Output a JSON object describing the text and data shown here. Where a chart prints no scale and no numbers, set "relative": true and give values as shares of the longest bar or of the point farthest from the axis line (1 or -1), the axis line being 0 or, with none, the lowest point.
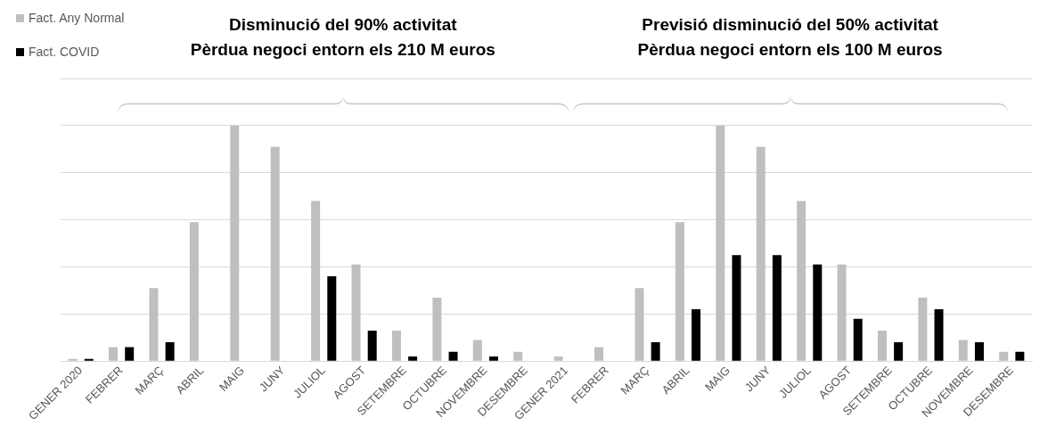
{
  "chart_data": {
    "type": "bar",
    "relative": true,
    "grid": "y",
    "legend": "top left",
    "categories": [
      "GENER 2020",
      "FEBRER",
      "MARÇ",
      "ABRIL",
      "MAIG",
      "JUNY",
      "JULIOL",
      "AGOST",
      "SETEMBRE",
      "OCTUBRE",
      "NOVEMBRE",
      "DESEMBRE",
      "GENER 2021",
      "FEBRER",
      "MARÇ",
      "ABRIL",
      "MAIG",
      "JUNY",
      "JULIOL",
      "AGOST",
      "SETEMBRE",
      "OCTUBRE",
      "NOVEMBRE",
      "DESEMBRE"
    ],
    "series": [
      {
        "name": "Fact. Any Normal",
        "color": "#bfbfbf",
        "values": [
          0.01,
          0.06,
          0.31,
          0.59,
          1,
          0.91,
          0.68,
          0.41,
          0.13,
          0.27,
          0.09,
          0.04,
          0.02,
          0.06,
          0.31,
          0.59,
          1,
          0.91,
          0.68,
          0.41,
          0.13,
          0.27,
          0.09,
          0.04
        ]
      },
      {
        "name": "Fact. COVID",
        "color": "#000000",
        "values": [
          0.01,
          0.06,
          0.08,
          0,
          0,
          0,
          0.36,
          0.13,
          0.02,
          0.04,
          0.02,
          0,
          0,
          0,
          0.08,
          0.22,
          0.45,
          0.45,
          0.41,
          0.18,
          0.08,
          0.22,
          0.08,
          0.04
        ]
      }
    ],
    "annotations": [
      "Disminució del 90% activitat\nPèrdua negoci entorn els 210 M euros",
      "Previsió disminució del 50% activitat\nPèrdua negoci entorn  els 100 M euros"
    ]
  }
}
